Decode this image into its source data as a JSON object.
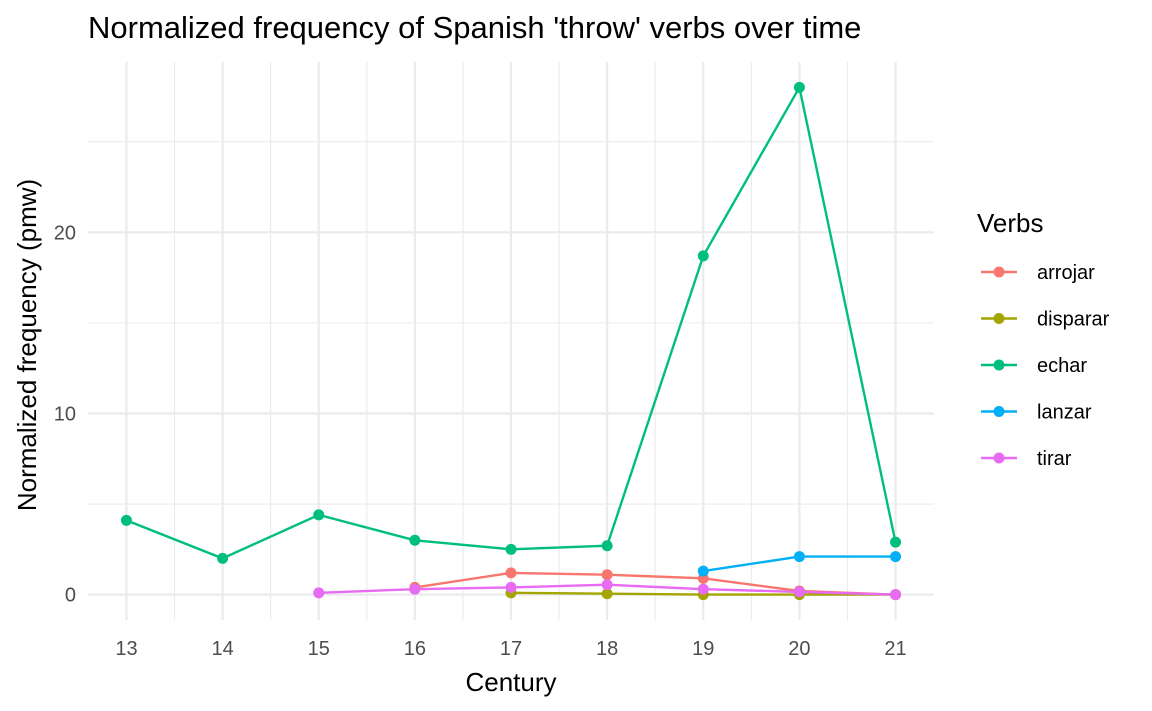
{
  "chart_data": {
    "type": "line",
    "title": "Normalized frequency of Spanish 'throw' verbs over time",
    "xlabel": "Century",
    "ylabel": "Normalized frequency (pmw)",
    "x": [
      13,
      14,
      15,
      16,
      17,
      18,
      19,
      20,
      21
    ],
    "xlim": [
      12.6,
      21.4
    ],
    "ylim": [
      -1.4,
      29.4
    ],
    "yticks": [
      0,
      10,
      20
    ],
    "grid": true,
    "legend": {
      "title": "Verbs",
      "position": "right"
    },
    "series": [
      {
        "name": "arrojar",
        "color": "#F8766D",
        "points": [
          [
            16,
            0.4
          ],
          [
            17,
            1.2
          ],
          [
            18,
            1.1
          ],
          [
            19,
            0.9
          ],
          [
            20,
            0.2
          ],
          [
            21,
            0.0
          ]
        ]
      },
      {
        "name": "disparar",
        "color": "#A3A500",
        "points": [
          [
            17,
            0.1
          ],
          [
            18,
            0.05
          ],
          [
            19,
            0.0
          ],
          [
            20,
            0.0
          ],
          [
            21,
            0.0
          ]
        ]
      },
      {
        "name": "echar",
        "color": "#00BF7D",
        "points": [
          [
            13,
            4.1
          ],
          [
            14,
            2.0
          ],
          [
            15,
            4.4
          ],
          [
            16,
            3.0
          ],
          [
            17,
            2.5
          ],
          [
            18,
            2.7
          ],
          [
            19,
            18.7
          ],
          [
            20,
            28.0
          ],
          [
            21,
            2.9
          ]
        ]
      },
      {
        "name": "lanzar",
        "color": "#00B0F6",
        "points": [
          [
            19,
            1.3
          ],
          [
            20,
            2.1
          ],
          [
            21,
            2.1
          ]
        ]
      },
      {
        "name": "tirar",
        "color": "#E76BF3",
        "points": [
          [
            15,
            0.1
          ],
          [
            16,
            0.3
          ],
          [
            17,
            0.4
          ],
          [
            18,
            0.55
          ],
          [
            19,
            0.3
          ],
          [
            20,
            0.15
          ],
          [
            21,
            0.0
          ]
        ]
      }
    ]
  }
}
